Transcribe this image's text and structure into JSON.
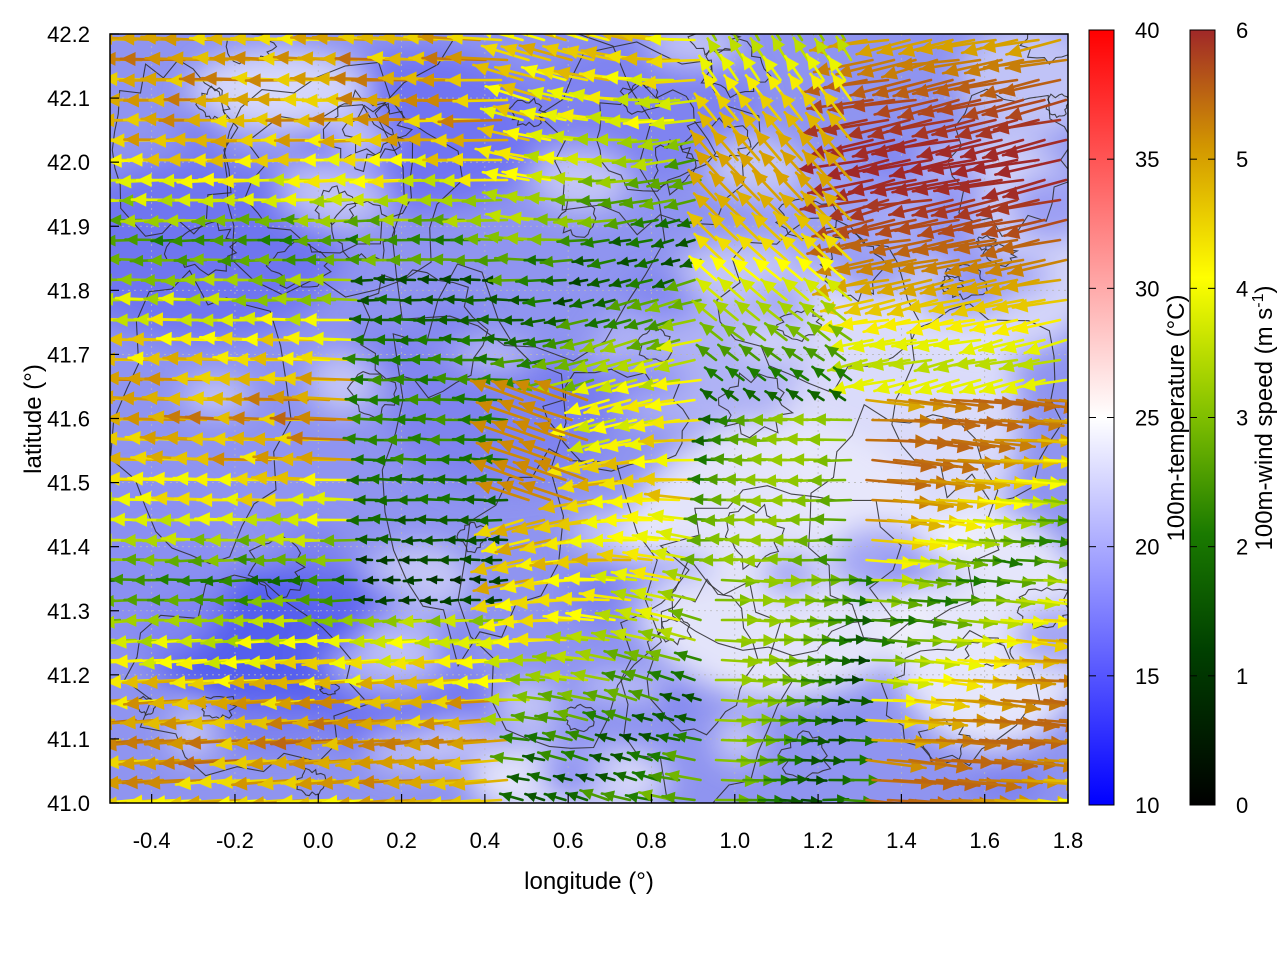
{
  "chart_data": {
    "type": "vector-field-map",
    "xlabel": "longitude (°)",
    "ylabel": "latitude (°)",
    "xlim": [
      -0.5,
      1.8
    ],
    "ylim": [
      41.0,
      42.2
    ],
    "xticks": [
      -0.4,
      -0.2,
      0.0,
      0.2,
      0.4,
      0.6,
      0.8,
      1.0,
      1.2,
      1.4,
      1.6,
      1.8
    ],
    "xtick_labels": [
      "-0.4",
      "-0.2",
      "0.0",
      "0.2",
      "0.4",
      "0.6",
      "0.8",
      "1.0",
      "1.2",
      "1.4",
      "1.6",
      "1.8"
    ],
    "yticks": [
      41.0,
      41.1,
      41.2,
      41.3,
      41.4,
      41.5,
      41.6,
      41.7,
      41.8,
      41.9,
      42.0,
      42.1,
      42.2
    ],
    "ytick_labels": [
      "41.0",
      "41.1",
      "41.2",
      "41.3",
      "41.4",
      "41.5",
      "41.6",
      "41.7",
      "41.8",
      "41.9",
      "42.0",
      "42.1",
      "42.2"
    ],
    "grid": true,
    "temperature_colorbar": {
      "label": "100m-temperature (°C)",
      "range": [
        10,
        40
      ],
      "ticks": [
        "10",
        "15",
        "20",
        "25",
        "30",
        "35",
        "40"
      ],
      "colors": [
        "#0000ff",
        "#ffffff",
        "#ff0000"
      ]
    },
    "wind_colorbar": {
      "label_main": "100m-wind speed (m s",
      "label_sup": "-1",
      "label_close": ")",
      "range": [
        0,
        6
      ],
      "ticks": [
        "0",
        "1",
        "2",
        "3",
        "4",
        "5",
        "6"
      ],
      "colors": [
        "#000000",
        "#006400",
        "#7fbf00",
        "#ffff00",
        "#d2a000",
        "#c86414",
        "#a02828"
      ]
    }
  }
}
